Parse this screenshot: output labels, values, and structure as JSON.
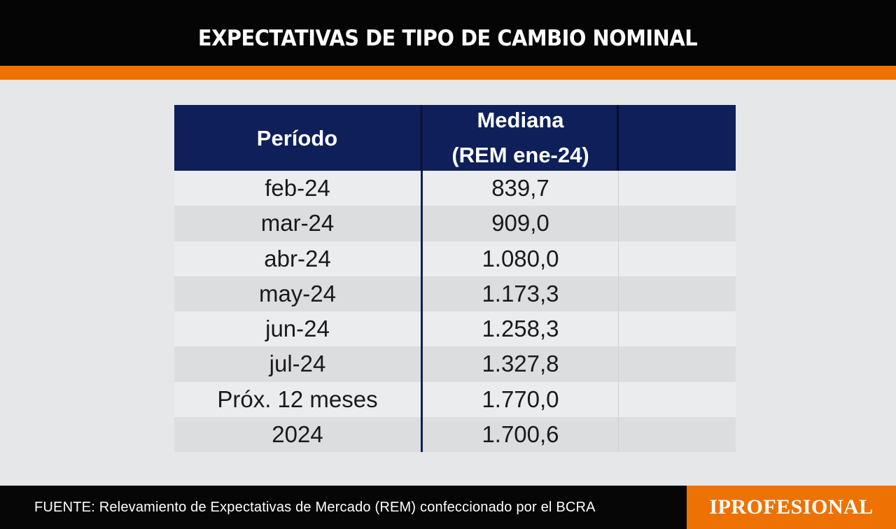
{
  "title": "EXPECTATIVAS DE TIPO DE CAMBIO NOMINAL",
  "table": {
    "headers": {
      "period": "Período",
      "median_line1": "Mediana",
      "median_line2": "(REM ene-24)"
    },
    "rows": [
      {
        "period": "feb-24",
        "value": "839,7"
      },
      {
        "period": "mar-24",
        "value": "909,0"
      },
      {
        "period": "abr-24",
        "value": "1.080,0"
      },
      {
        "period": "may-24",
        "value": "1.173,3"
      },
      {
        "period": "jun-24",
        "value": "1.258,3"
      },
      {
        "period": "jul-24",
        "value": "1.327,8"
      },
      {
        "period": "Próx. 12 meses",
        "value": "1.770,0"
      },
      {
        "period": "2024",
        "value": "1.700,6"
      }
    ]
  },
  "footer": {
    "source": "FUENTE: Relevamiento de Expectativas de Mercado (REM) confeccionado por el BCRA",
    "brand": "IPROFESIONAL"
  },
  "colors": {
    "header_bg": "#050505",
    "accent_orange": "#ee7203",
    "table_header_bg": "#0e1f5a",
    "page_bg": "#e6e7e9"
  }
}
